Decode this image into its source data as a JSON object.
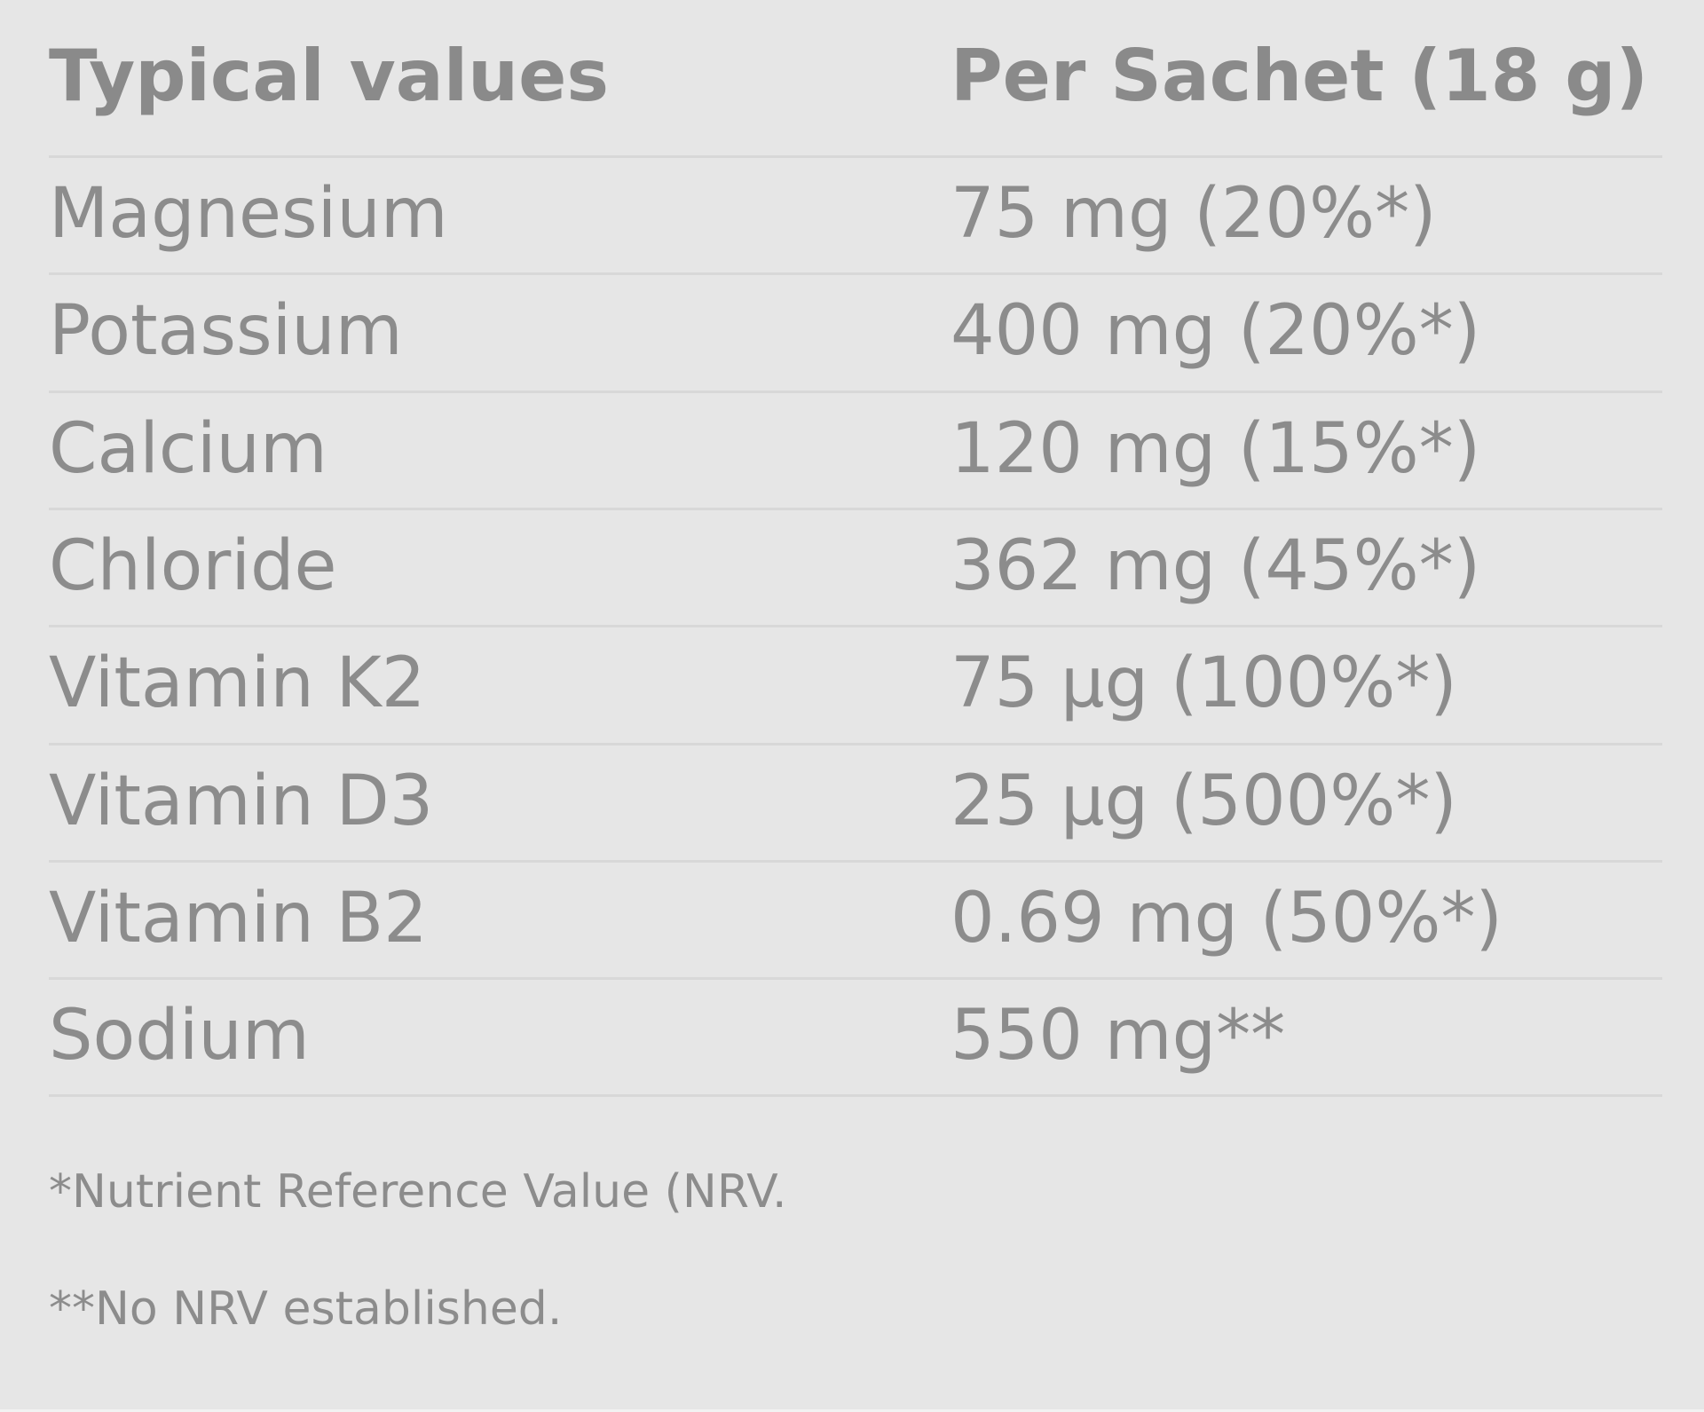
{
  "table": {
    "header": [
      "Typical values",
      "Per Sachet (18 g)"
    ],
    "rows": [
      [
        "Magnesium",
        "75 mg (20%*)"
      ],
      [
        "Potassium",
        "400 mg (20%*)"
      ],
      [
        "Calcium",
        "120 mg (15%*)"
      ],
      [
        "Chloride",
        "362 mg (45%*)"
      ],
      [
        "Vitamin K2",
        "75 µg (100%*)"
      ],
      [
        "Vitamin D3",
        "25 µg (500%*)"
      ],
      [
        "Vitamin B2",
        "0.69 mg (50%*)"
      ],
      [
        "Sodium",
        "550 mg**"
      ]
    ]
  },
  "footnotes": [
    "*Nutrient Reference Value (NRV.",
    "**No NRV established."
  ]
}
